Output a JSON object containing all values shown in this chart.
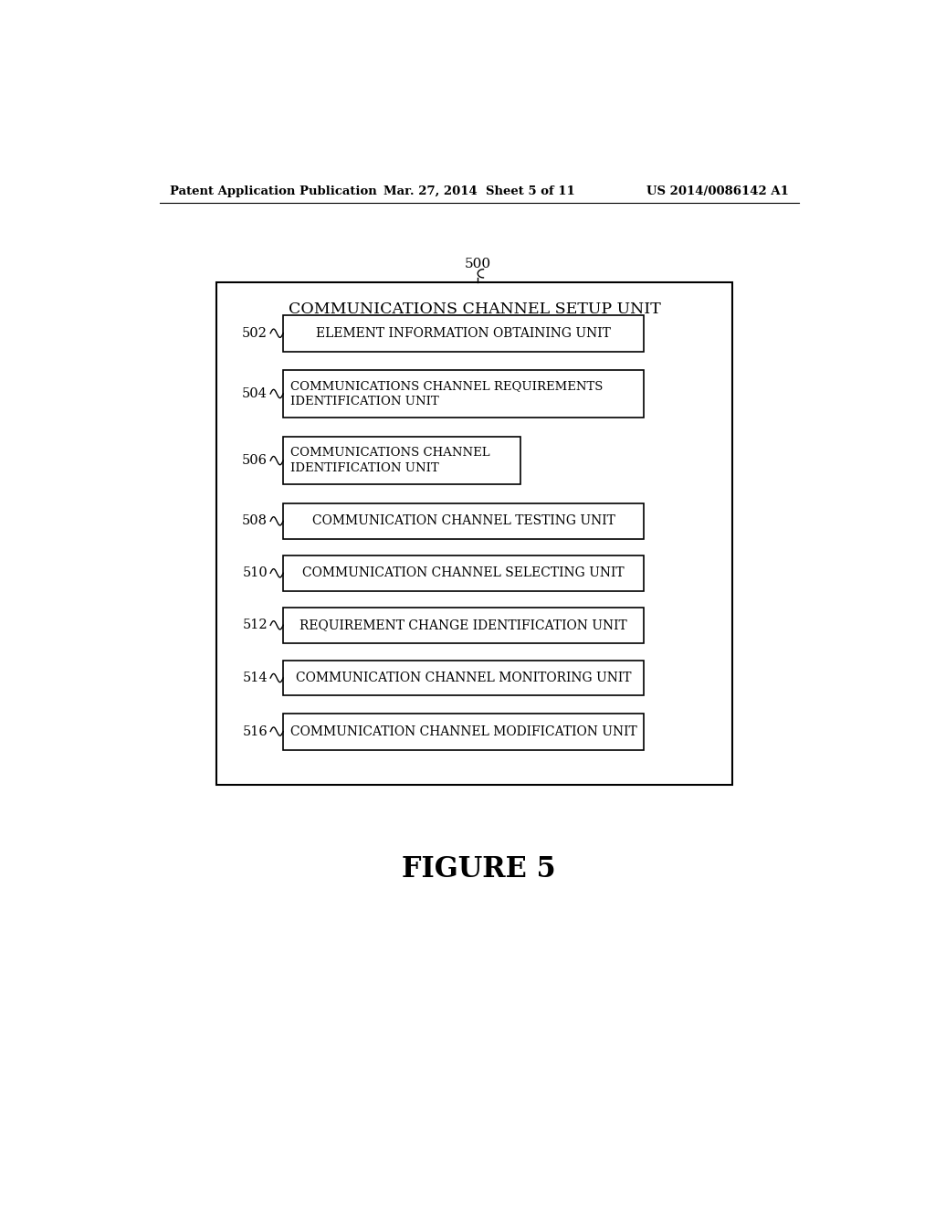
{
  "background_color": "#ffffff",
  "header_left": "Patent Application Publication",
  "header_center": "Mar. 27, 2014  Sheet 5 of 11",
  "header_right": "US 2014/0086142 A1",
  "figure_label": "FIGURE 5",
  "outer_box_label": "COMMUNICATIONS CHANNEL SETUP UNIT",
  "outer_box_number": "500",
  "boxes": [
    {
      "number": "502",
      "label": "ELEMENT INFORMATION OBTAINING UNIT",
      "narrow": false
    },
    {
      "number": "504",
      "label": "COMMUNICATIONS CHANNEL REQUIREMENTS\nIDENTIFICATION UNIT",
      "narrow": false
    },
    {
      "number": "506",
      "label": "COMMUNICATIONS CHANNEL\nIDENTIFICATION UNIT",
      "narrow": true
    },
    {
      "number": "508",
      "label": "COMMUNICATION CHANNEL TESTING UNIT",
      "narrow": false
    },
    {
      "number": "510",
      "label": "COMMUNICATION CHANNEL SELECTING UNIT",
      "narrow": false
    },
    {
      "number": "512",
      "label": "REQUIREMENT CHANGE IDENTIFICATION UNIT",
      "narrow": false
    },
    {
      "number": "514",
      "label": "COMMUNICATION CHANNEL MONITORING UNIT",
      "narrow": false
    },
    {
      "number": "516",
      "label": "COMMUNICATION CHANNEL MODIFICATION UNIT",
      "narrow": false
    }
  ]
}
